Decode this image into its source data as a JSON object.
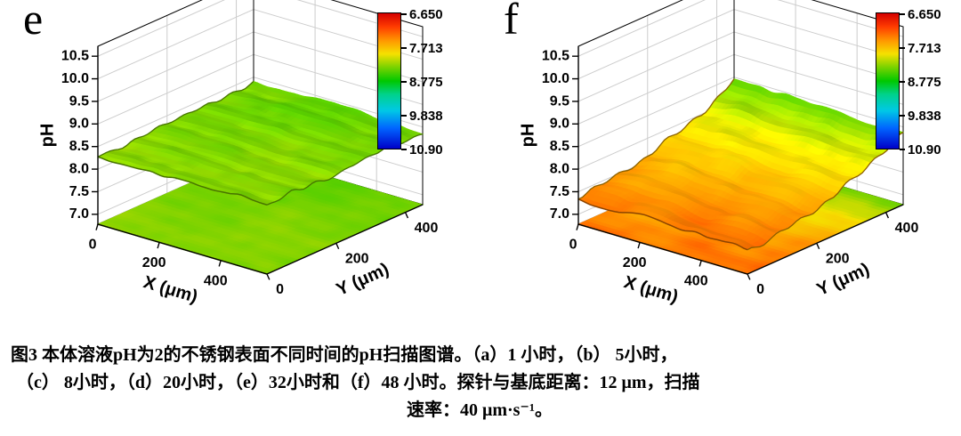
{
  "caption": {
    "lines": [
      "图3 本体溶液pH为2的不锈钢表面不同时间的pH扫描图谱。（a）1 小时，（b） 5小时，",
      "（c） 8小时，（d）20小时，（e）32小时和（f）48 小时。探针与基底距离：12 μm，扫描",
      "速率：40 μm·s⁻¹。"
    ]
  },
  "colormap": {
    "domain": [
      6.65,
      10.9
    ],
    "stops": [
      [
        0.0,
        "#d40000"
      ],
      [
        0.1,
        "#ff3c00"
      ],
      [
        0.2,
        "#ff9600"
      ],
      [
        0.3,
        "#f5e100"
      ],
      [
        0.4,
        "#78d200"
      ],
      [
        0.5,
        "#00c800"
      ],
      [
        0.6,
        "#00d28c"
      ],
      [
        0.72,
        "#00c8e6"
      ],
      [
        0.85,
        "#0064ff"
      ],
      [
        1.0,
        "#0000c8"
      ]
    ]
  },
  "chart_data": [
    {
      "type": "surface",
      "panel_label": "e",
      "xlabel": "X (μm)",
      "ylabel": "Y (μm)",
      "zlabel": "pH",
      "x_range_um": [
        0,
        550
      ],
      "y_range_um": [
        0,
        450
      ],
      "z_range": [
        6.78,
        10.72
      ],
      "x_tick_labels": [
        "0",
        "200",
        "400"
      ],
      "x_tick_values": [
        0,
        200,
        400
      ],
      "y_tick_labels": [
        "0",
        "200",
        "400"
      ],
      "y_tick_values": [
        0,
        200,
        400
      ],
      "z_tick_labels": [
        "7.0",
        "7.5",
        "8.0",
        "8.5",
        "9.0",
        "9.5",
        "10.0",
        "10.5"
      ],
      "z_tick_values": [
        7.0,
        7.5,
        8.0,
        8.5,
        9.0,
        9.5,
        10.0,
        10.5
      ],
      "grid": true,
      "floor_projection": true,
      "surface": {
        "description": "pH scan map at 32 h: nearly flat green surface around pH 8.3 with gentle undulations; flat projection of same colors on the bottom plane",
        "base_ph": 8.28,
        "slope_x": 0.0,
        "slope_y": 0.12,
        "slope_pow": 1,
        "noise_amp": 0.09,
        "ripple_amp": 0.025,
        "seed": 11,
        "approx_mean_ph": 8.3,
        "approx_min_ph": 8.1,
        "approx_max_ph": 8.5
      },
      "colorbar": {
        "labels": [
          "6.650",
          "7.713",
          "8.775",
          "9.838",
          "10.90"
        ],
        "values": [
          6.65,
          7.713,
          8.775,
          9.838,
          10.9
        ]
      }
    },
    {
      "type": "surface",
      "panel_label": "f",
      "xlabel": "X (μm)",
      "ylabel": "Y (μm)",
      "zlabel": "pH",
      "x_range_um": [
        0,
        550
      ],
      "y_range_um": [
        0,
        450
      ],
      "z_range": [
        6.78,
        10.72
      ],
      "x_tick_labels": [
        "0",
        "200",
        "400"
      ],
      "x_tick_values": [
        0,
        200,
        400
      ],
      "y_tick_labels": [
        "0",
        "200",
        "400"
      ],
      "y_tick_values": [
        0,
        200,
        400
      ],
      "z_tick_labels": [
        "7.0",
        "7.5",
        "8.0",
        "8.5",
        "9.0",
        "9.5",
        "10.0",
        "10.5"
      ],
      "z_tick_values": [
        7.0,
        7.5,
        8.0,
        8.5,
        9.0,
        9.5,
        10.0,
        10.5
      ],
      "grid": true,
      "floor_projection": true,
      "surface": {
        "description": "pH scan map at 48 h: tilted wavy surface, orange (≈pH 7.4) at the front rising to green (≈pH 8.4) at the back; orange/green projection on the bottom plane",
        "base_ph": 7.42,
        "slope_x": -0.06,
        "slope_y": 0.95,
        "slope_pow": 1.7,
        "noise_amp": 0.11,
        "ripple_amp": 0.04,
        "seed": 23,
        "approx_mean_ph": 7.8,
        "approx_min_ph": 7.35,
        "approx_max_ph": 8.4
      },
      "colorbar": {
        "labels": [
          "6.650",
          "7.713",
          "8.775",
          "9.838",
          "10.90"
        ],
        "values": [
          6.65,
          7.713,
          8.775,
          9.838,
          10.9
        ]
      }
    }
  ]
}
